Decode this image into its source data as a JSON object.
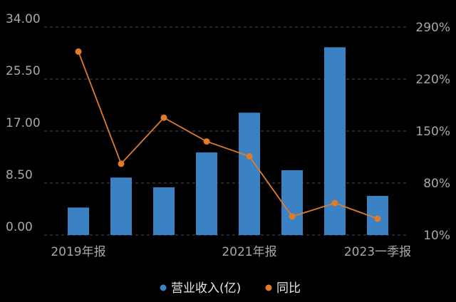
{
  "chart_data": {
    "type": "bar+line",
    "categories": [
      "2019年报",
      "",
      "",
      "",
      "2021年报",
      "",
      "",
      "2023一季报"
    ],
    "x_tick_labels": [
      "2019年报",
      "2021年报",
      "2023一季报"
    ],
    "series": [
      {
        "name": "营业收入(亿)",
        "type": "bar",
        "axis": "left",
        "values": [
          4.5,
          9.4,
          7.8,
          13.5,
          20.0,
          10.6,
          30.7,
          6.4
        ]
      },
      {
        "name": "同比",
        "type": "line",
        "axis": "right",
        "values": [
          257,
          106,
          168,
          136,
          116,
          35,
          53,
          32
        ]
      }
    ],
    "left_axis": {
      "ticks": [
        "0.00",
        "8.50",
        "17.00",
        "25.50",
        "34.00"
      ],
      "ylim": [
        0,
        34
      ]
    },
    "right_axis": {
      "ticks": [
        "10%",
        "80%",
        "150%",
        "220%",
        "290%"
      ],
      "ylim": [
        10,
        290
      ]
    },
    "grid": "horizontal-dashed",
    "legend": {
      "position": "bottom",
      "items": [
        {
          "label": "营业收入(亿)",
          "color": "#3b82c4"
        },
        {
          "label": "同比",
          "color": "#e07b2a"
        }
      ]
    },
    "colors": {
      "bar": "#3b82c4",
      "line": "#e07b2a",
      "tick": "#a8a8a8",
      "grid": "#4a4a4a",
      "background": "#000000"
    }
  }
}
